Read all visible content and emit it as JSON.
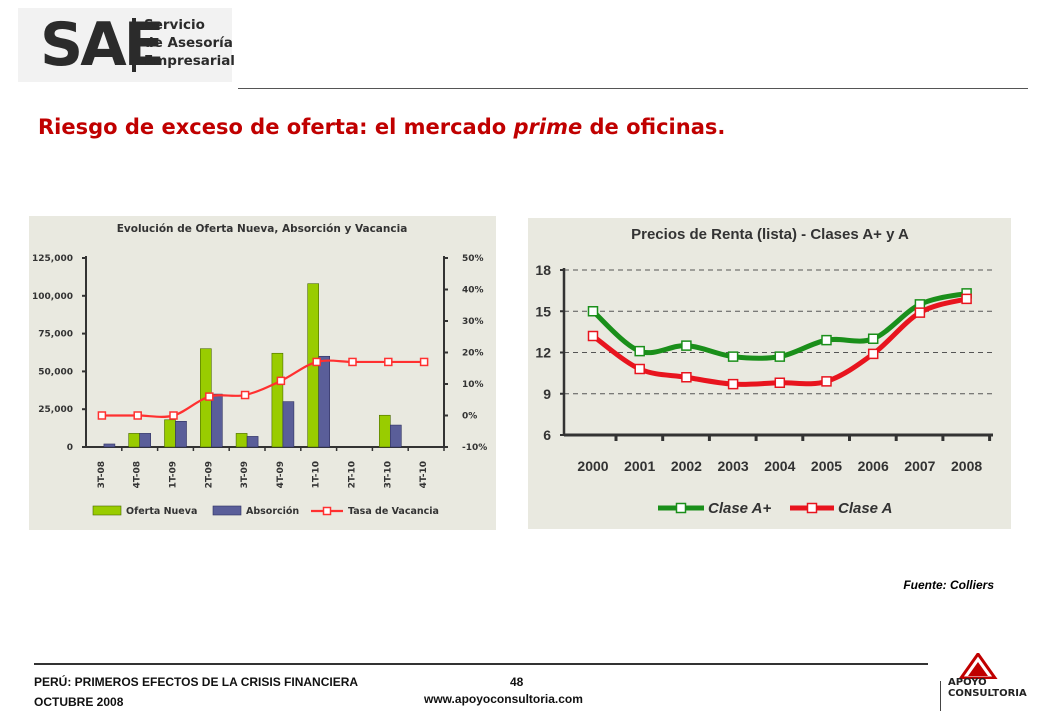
{
  "header": {
    "logo_text": "SAE",
    "logo_lines": [
      "Servicio",
      "de Asesoría",
      "Empresarial"
    ]
  },
  "slide": {
    "title_before": "Riesgo de exceso de oferta: el mercado ",
    "title_italic": "prime",
    "title_after": " de oficinas.",
    "source": "Fuente: Colliers"
  },
  "footer": {
    "line1": "PERÚ: PRIMEROS EFECTOS DE LA CRISIS FINANCIERA",
    "line2": "OCTUBRE 2008",
    "page_number": "48",
    "url": "www.apoyoconsultoria.com",
    "brand_line1": "APOYO",
    "brand_line2": "CONSULTORIA"
  },
  "colors": {
    "title_red": "#c00000",
    "oferta_nueva": "#99cc00",
    "absorcion": "#5a5e99",
    "tasa_vacancia": "#ff3030",
    "clase_a_plus": "#1a8f1a",
    "clase_a": "#e8141e",
    "panel_bg": "#e9e9e0"
  },
  "chart_data": [
    {
      "type": "bar",
      "title": "Evolución de Oferta Nueva, Absorción y Vacancia",
      "categories": [
        "3T-08",
        "4T-08",
        "1T-09",
        "2T-09",
        "3T-09",
        "4T-09",
        "1T-10",
        "2T-10",
        "3T-10",
        "4T-10"
      ],
      "ylim": [
        0,
        125000
      ],
      "y_ticks": [
        "0",
        "25,000",
        "50,000",
        "75,000",
        "100,000",
        "125,000"
      ],
      "y2lim": [
        -10,
        50
      ],
      "y2_ticks": [
        "-10%",
        "0%",
        "10%",
        "20%",
        "30%",
        "40%",
        "50%"
      ],
      "series": [
        {
          "name": "Oferta Nueva",
          "type": "bar",
          "values": [
            0,
            9000,
            18000,
            65000,
            9000,
            62000,
            108000,
            0,
            21000,
            0
          ]
        },
        {
          "name": "Absorción",
          "type": "bar",
          "values": [
            2000,
            9000,
            17000,
            35000,
            7000,
            30000,
            60000,
            0,
            14500,
            0
          ]
        },
        {
          "name": "Tasa de Vacancia",
          "type": "line",
          "axis": "right",
          "values": [
            0,
            0,
            0,
            6,
            6.5,
            11,
            17,
            17,
            17,
            17
          ]
        }
      ],
      "legend_position": "bottom",
      "grid": false
    },
    {
      "type": "line",
      "title": "Precios de Renta (lista) - Clases A+ y A",
      "x": [
        "2000",
        "2001",
        "2002",
        "2003",
        "2004",
        "2005",
        "2006",
        "2007",
        "2008"
      ],
      "ylim": [
        6,
        18
      ],
      "y_ticks": [
        "6",
        "9",
        "12",
        "15",
        "18"
      ],
      "series": [
        {
          "name": "Clase A+",
          "values": [
            15.0,
            12.1,
            12.5,
            11.7,
            11.7,
            12.9,
            13.0,
            15.5,
            16.3
          ]
        },
        {
          "name": "Clase A",
          "values": [
            13.2,
            10.8,
            10.2,
            9.7,
            9.8,
            9.9,
            11.9,
            14.9,
            15.9
          ]
        }
      ],
      "legend_position": "bottom",
      "grid": true
    }
  ]
}
